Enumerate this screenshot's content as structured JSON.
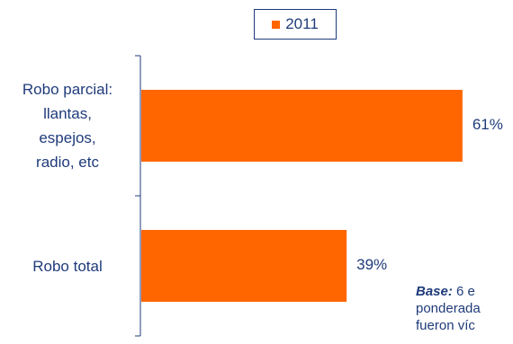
{
  "chart_data": {
    "type": "bar",
    "orientation": "horizontal",
    "categories": [
      [
        "Robo parcial:",
        "llantas,",
        "espejos,",
        "radio, etc"
      ],
      [
        "Robo total"
      ]
    ],
    "series": [
      {
        "name": "2011",
        "values": [
          61,
          39
        ],
        "labels": [
          "61%",
          "39%"
        ]
      }
    ],
    "xlim": [
      0,
      100
    ],
    "grid": false,
    "legend": "top-center"
  },
  "colors": {
    "bar": "#ff6600",
    "text": "#1f3b7a",
    "axis": "#1f3b7a"
  },
  "note": {
    "bold": "Base:",
    "lines": [
      "6 e",
      "ponderada",
      "fueron víc"
    ]
  }
}
